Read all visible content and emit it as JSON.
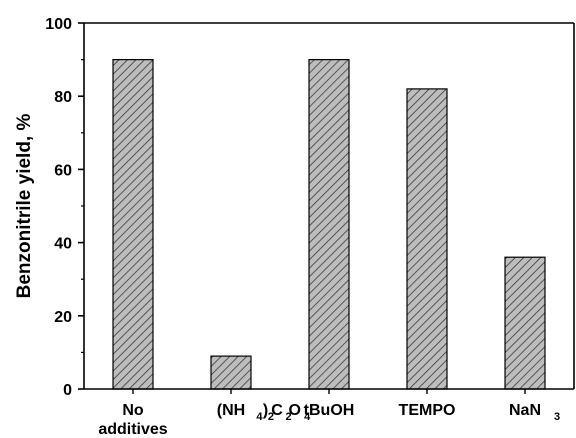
{
  "chart_data": {
    "type": "bar",
    "categories": [
      {
        "lines": [
          [
            {
              "t": "No"
            }
          ],
          [
            {
              "t": "additives"
            }
          ]
        ]
      },
      {
        "lines": [
          [
            {
              "t": "(NH"
            },
            {
              "t": "4",
              "sub": true
            },
            {
              "t": ")"
            },
            {
              "t": "2",
              "sub": true
            },
            {
              "t": "C"
            },
            {
              "t": "2",
              "sub": true
            },
            {
              "t": "O"
            },
            {
              "t": "4",
              "sub": true
            }
          ]
        ]
      },
      {
        "lines": [
          [
            {
              "t": "tBuOH"
            }
          ]
        ]
      },
      {
        "lines": [
          [
            {
              "t": "TEMPO"
            }
          ]
        ]
      },
      {
        "lines": [
          [
            {
              "t": "NaN"
            },
            {
              "t": "3",
              "sub": true
            }
          ]
        ]
      }
    ],
    "values": [
      90,
      9,
      90,
      82,
      36
    ],
    "ylabel": "Benzonitrile yield, %",
    "xlabel": "",
    "ylim": [
      0,
      100
    ],
    "yticks": [
      0,
      20,
      40,
      60,
      80,
      100
    ],
    "grid": false,
    "bar_fill": "hatched-gray",
    "colors": {
      "bar_fill": "#bdbdbd",
      "hatch": "#3a3a3a",
      "axis": "#000000"
    }
  }
}
